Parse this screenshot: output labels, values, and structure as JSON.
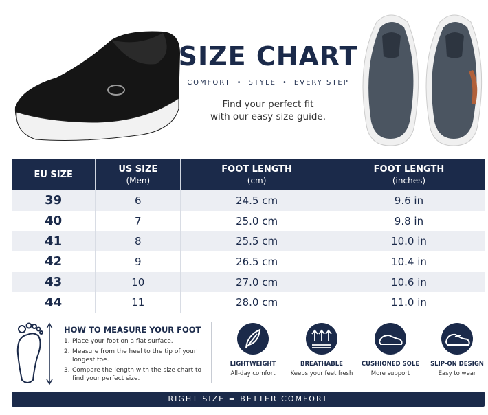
{
  "header": {
    "title": "SIZE CHART",
    "tagline": [
      "COMFORT",
      "STYLE",
      "EVERY STEP"
    ],
    "subtitle": [
      "Find your perfect fit",
      "with our easy size guide."
    ]
  },
  "table": {
    "columns": [
      [
        "EU SIZE"
      ],
      [
        "US SIZE",
        "(Men)"
      ],
      [
        "FOOT LENGTH",
        "(cm)"
      ],
      [
        "FOOT LENGTH",
        "(inches)"
      ]
    ],
    "rows": [
      [
        "39",
        "6",
        "24.5 cm",
        "9.6 in"
      ],
      [
        "40",
        "7",
        "25.0 cm",
        "9.8 in"
      ],
      [
        "41",
        "8",
        "25.5 cm",
        "10.0 in"
      ],
      [
        "42",
        "9",
        "26.5 cm",
        "10.4 in"
      ],
      [
        "43",
        "10",
        "27.0 cm",
        "10.6 in"
      ],
      [
        "44",
        "11",
        "28.0 cm",
        "11.0 in"
      ]
    ]
  },
  "measure": {
    "title": "HOW TO MEASURE YOUR FOOT",
    "steps": [
      {
        "num": "1.",
        "text": "Place your foot on a flat surface."
      },
      {
        "num": "2.",
        "text": "Measure from the heel to the tip of your longest toe."
      },
      {
        "num": "3.",
        "text": "Compare the length with the size chart to find your perfect size."
      }
    ]
  },
  "features": [
    {
      "title": "LIGHTWEIGHT",
      "desc": "All-day comfort"
    },
    {
      "title": "BREATHABLE",
      "desc": "Keeps your feet fresh"
    },
    {
      "title": "CUSHIONED SOLE",
      "desc": "More support"
    },
    {
      "title": "SLIP-ON DESIGN",
      "desc": "Easy to wear"
    }
  ],
  "footer": "RIGHT SIZE = BETTER COMFORT"
}
